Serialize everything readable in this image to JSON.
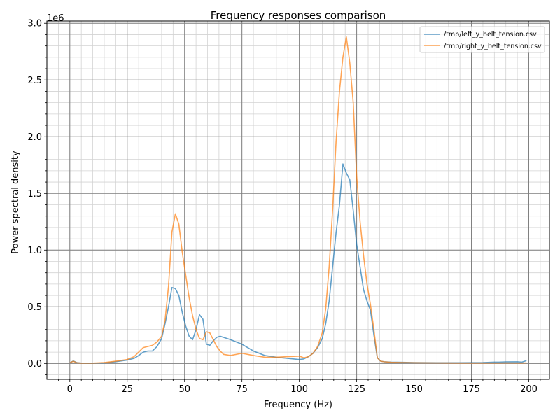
{
  "chart_data": {
    "type": "line",
    "title": "Frequency responses comparison",
    "xlabel": "Frequency (Hz)",
    "ylabel": "Power spectral density",
    "y_offset_label": "1e6",
    "xlim": [
      -10,
      209
    ],
    "ylim": [
      -0.14,
      3.02
    ],
    "y_scale_factor": 1000000,
    "x_ticks": [
      0,
      25,
      50,
      75,
      100,
      125,
      150,
      175,
      200
    ],
    "x_tick_labels": [
      "0",
      "25",
      "50",
      "75",
      "100",
      "125",
      "150",
      "175",
      "200"
    ],
    "y_ticks": [
      0,
      0.5,
      1.0,
      1.5,
      2.0,
      2.5,
      3.0
    ],
    "y_tick_labels": [
      "0.0",
      "0.5",
      "1.0",
      "1.5",
      "2.0",
      "2.5",
      "3.0"
    ],
    "grid": true,
    "legend_position": "top-right",
    "series": [
      {
        "name": "/tmp/left_y_belt_tension.csv",
        "color": "#1f77b4",
        "x": [
          0,
          1.5,
          3,
          5,
          10,
          15,
          20,
          25,
          28,
          30,
          32,
          34,
          36,
          38,
          40,
          41.5,
          43,
          44.5,
          46,
          47.5,
          49,
          50.5,
          52,
          53.5,
          55,
          56.5,
          58,
          59.5,
          61,
          62.5,
          64,
          65.5,
          67,
          70,
          75,
          80,
          85,
          90,
          95,
          100,
          102,
          104,
          106,
          108,
          110,
          111.5,
          113,
          114.5,
          116,
          117.5,
          119,
          120.5,
          122,
          123.5,
          125,
          126.5,
          128,
          129.5,
          131,
          132.5,
          134,
          135.5,
          137,
          140,
          145,
          150,
          160,
          170,
          180,
          185,
          187,
          190,
          195,
          197,
          199
        ],
        "values": [
          0.005,
          0.022,
          0.008,
          0.003,
          0.002,
          0.005,
          0.015,
          0.03,
          0.045,
          0.07,
          0.1,
          0.11,
          0.11,
          0.15,
          0.22,
          0.35,
          0.5,
          0.67,
          0.66,
          0.6,
          0.45,
          0.33,
          0.24,
          0.21,
          0.3,
          0.43,
          0.39,
          0.17,
          0.16,
          0.2,
          0.23,
          0.24,
          0.23,
          0.21,
          0.17,
          0.11,
          0.07,
          0.055,
          0.045,
          0.035,
          0.04,
          0.06,
          0.09,
          0.14,
          0.22,
          0.35,
          0.55,
          0.85,
          1.15,
          1.4,
          1.76,
          1.68,
          1.62,
          1.35,
          1.05,
          0.85,
          0.65,
          0.55,
          0.47,
          0.25,
          0.05,
          0.02,
          0.015,
          0.012,
          0.01,
          0.008,
          0.006,
          0.006,
          0.008,
          0.012,
          0.012,
          0.014,
          0.015,
          0.012,
          0.025
        ]
      },
      {
        "name": "/tmp/right_y_belt_tension.csv",
        "color": "#ff7f0e",
        "x": [
          0,
          1.5,
          3,
          5,
          10,
          15,
          20,
          25,
          28,
          30,
          32,
          34,
          36,
          38,
          40,
          41.5,
          43,
          44.5,
          46,
          47.5,
          49,
          50.5,
          52,
          53.5,
          55,
          56.5,
          58,
          59.5,
          61,
          62.5,
          64,
          65.5,
          67,
          70,
          75,
          80,
          85,
          90,
          95,
          100,
          102,
          104,
          106,
          108,
          110,
          111.5,
          113,
          114.5,
          116,
          117.5,
          119,
          120.5,
          122,
          123.5,
          125,
          126.5,
          128,
          129.5,
          131,
          132.5,
          134,
          135.5,
          137,
          140,
          145,
          150,
          160,
          170,
          180,
          185,
          187,
          190,
          195,
          197,
          199
        ],
        "values": [
          0.005,
          0.02,
          0.006,
          0.003,
          0.003,
          0.008,
          0.02,
          0.035,
          0.06,
          0.1,
          0.14,
          0.15,
          0.16,
          0.19,
          0.24,
          0.38,
          0.68,
          1.16,
          1.32,
          1.23,
          0.98,
          0.78,
          0.58,
          0.42,
          0.3,
          0.22,
          0.21,
          0.28,
          0.27,
          0.21,
          0.15,
          0.11,
          0.08,
          0.07,
          0.09,
          0.07,
          0.055,
          0.055,
          0.06,
          0.065,
          0.05,
          0.06,
          0.09,
          0.15,
          0.27,
          0.48,
          0.85,
          1.35,
          1.95,
          2.4,
          2.7,
          2.88,
          2.65,
          2.3,
          1.65,
          1.25,
          0.95,
          0.7,
          0.52,
          0.3,
          0.05,
          0.02,
          0.015,
          0.01,
          0.008,
          0.006,
          0.005,
          0.004,
          0.004,
          0.004,
          0.004,
          0.005,
          0.004,
          0.004,
          0.005
        ]
      }
    ]
  }
}
